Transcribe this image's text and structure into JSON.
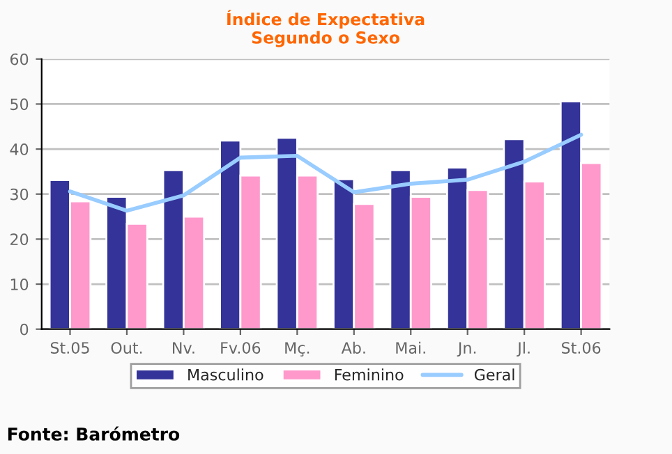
{
  "chart_data": {
    "type": "bar",
    "title": "Índice de Expectativa\nSegundo o Sexo",
    "categories": [
      "St.05",
      "Out.",
      "Nv.",
      "Fv.06",
      "Mç.",
      "Ab.",
      "Mai.",
      "Jn.",
      "Jl.",
      "St.06"
    ],
    "series": [
      {
        "name": "Masculino",
        "color": "#333399",
        "values": [
          33.1,
          29.4,
          35.3,
          41.9,
          42.5,
          33.3,
          35.3,
          35.9,
          42.2,
          50.6
        ]
      },
      {
        "name": "Feminino",
        "color": "#ff99cc",
        "values": [
          28.4,
          23.4,
          25.0,
          34.1,
          34.1,
          27.8,
          29.4,
          30.9,
          32.8,
          36.9
        ]
      },
      {
        "name": "Geral",
        "type": "line",
        "color": "#99ccff",
        "values": [
          30.6,
          26.3,
          29.7,
          38.1,
          38.5,
          30.4,
          32.3,
          33.2,
          37.2,
          43.2
        ]
      }
    ],
    "ylim": [
      0,
      60
    ],
    "yticks": [
      0,
      10,
      20,
      30,
      40,
      50,
      60
    ],
    "grid": "y",
    "legend": "bottom",
    "annotations": [
      "Fonte: Barómetro"
    ]
  }
}
